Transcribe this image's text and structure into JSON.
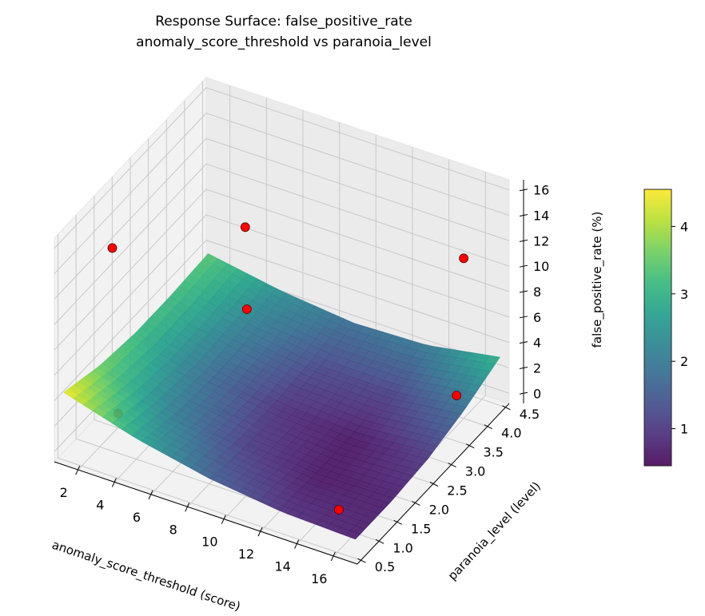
{
  "chart_data": {
    "type": "surface",
    "title": "Response Surface: false_positive_rate",
    "subtitle": "anomaly_score_threshold vs paranoia_level",
    "xlabel": "anomaly_score_threshold (score)",
    "ylabel": "paranoia_level (level)",
    "zlabel": "false_positive_rate (%)",
    "xlim": [
      0.7,
      17.3
    ],
    "ylim": [
      0.4,
      4.6
    ],
    "zlim": [
      -0.8,
      16.8
    ],
    "xticks": [
      "2",
      "4",
      "6",
      "8",
      "10",
      "12",
      "14",
      "16"
    ],
    "yticks": [
      "0.5",
      "1.0",
      "1.5",
      "2.0",
      "2.5",
      "3.0",
      "3.5",
      "4.0",
      "4.5"
    ],
    "zticks": [
      "0",
      "2",
      "4",
      "6",
      "8",
      "10",
      "12",
      "14",
      "16"
    ],
    "grid": true,
    "colormap": "viridis",
    "colorbar": {
      "range": [
        0.45,
        4.55
      ],
      "ticks": [
        "1",
        "2",
        "3",
        "4"
      ],
      "placement": "right"
    },
    "surface": {
      "x": [
        1,
        5,
        9,
        13,
        17
      ],
      "y": [
        0.5,
        1.5,
        2.5,
        3.5,
        4.5
      ],
      "z": [
        [
          4.5,
          2.8,
          1.6,
          0.9,
          0.7
        ],
        [
          3.6,
          2.1,
          1.1,
          0.6,
          0.7
        ],
        [
          3.2,
          1.8,
          0.9,
          0.6,
          1.0
        ],
        [
          3.2,
          2.0,
          1.2,
          1.1,
          1.8
        ],
        [
          3.4,
          2.4,
          1.8,
          2.0,
          3.0
        ]
      ]
    },
    "observed_points": {
      "color": "#ff0000",
      "points": [
        {
          "x": 1.1,
          "y": 1.8,
          "z": 12
        },
        {
          "x": 6.8,
          "y": 2.6,
          "z": 14
        },
        {
          "x": 15.6,
          "y": 4.2,
          "z": 11
        },
        {
          "x": 6.1,
          "y": 3.0,
          "z": 6
        },
        {
          "x": 4.0,
          "y": 0.5,
          "z": 4.3
        },
        {
          "x": 16.2,
          "y": 3.7,
          "z": 2
        },
        {
          "x": 15.1,
          "y": 1.0,
          "z": 0.6
        }
      ]
    }
  }
}
